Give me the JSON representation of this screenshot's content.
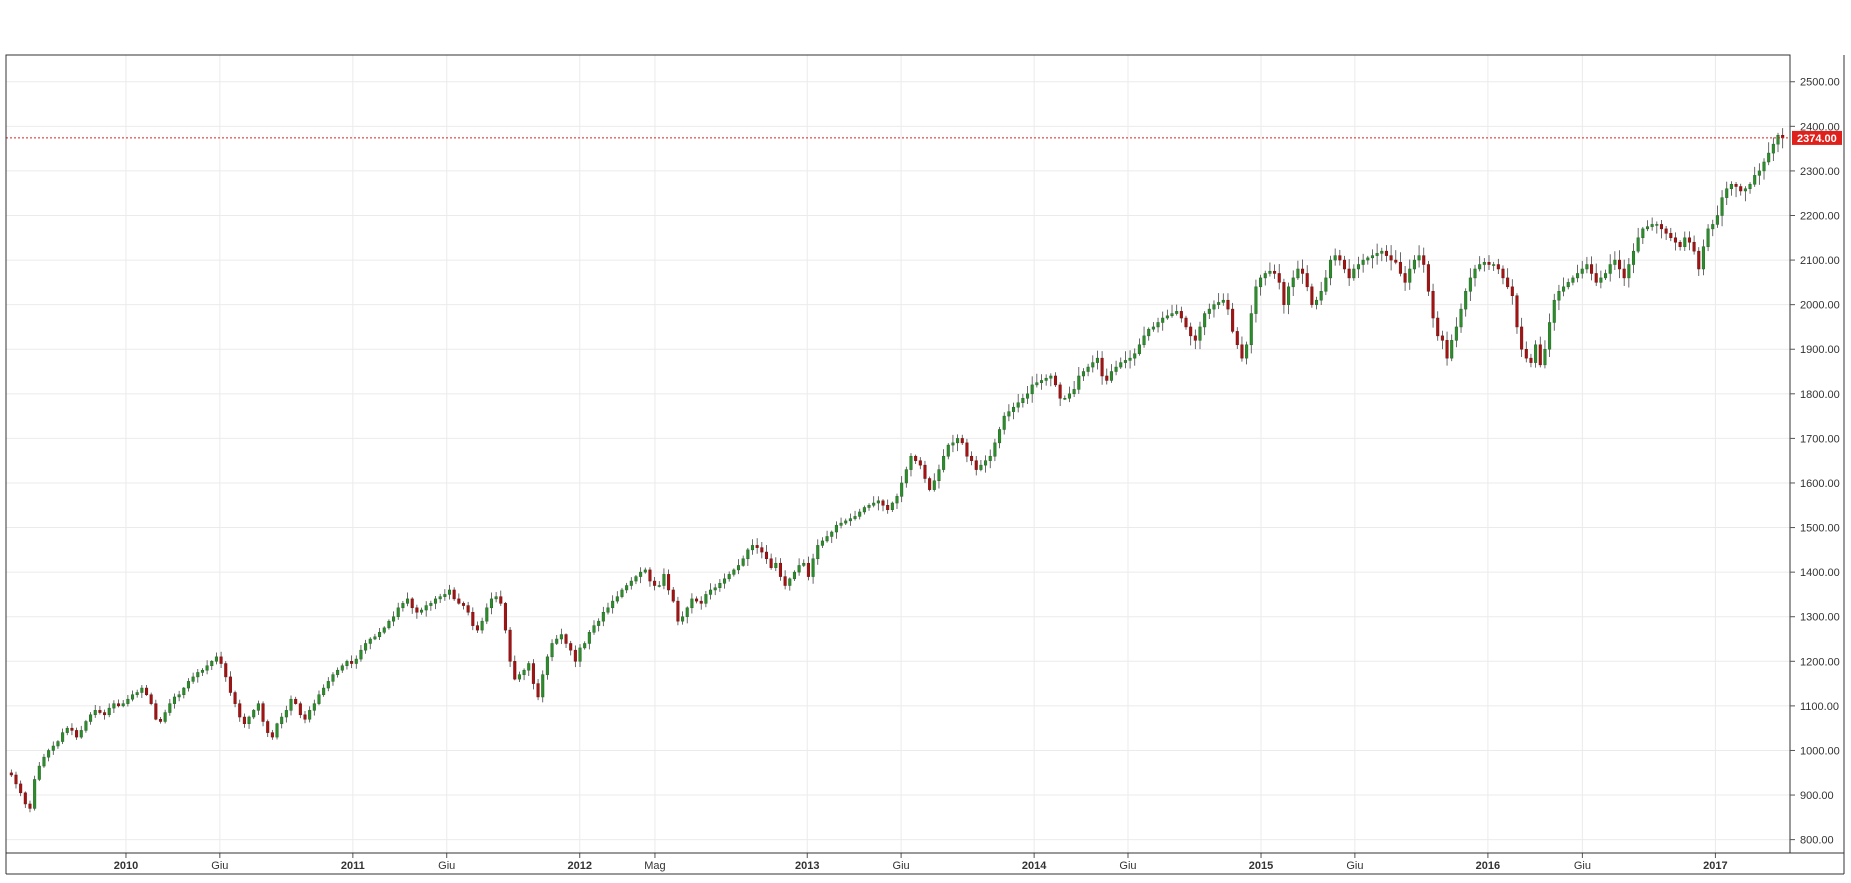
{
  "chart_data": {
    "type": "candlestick",
    "y_ticks": [
      "800.00",
      "900.00",
      "1000.00",
      "1100.00",
      "1200.00",
      "1300.00",
      "1400.00",
      "1500.00",
      "1600.00",
      "1700.00",
      "1800.00",
      "1900.00",
      "2000.00",
      "2100.00",
      "2200.00",
      "2300.00",
      "2400.00",
      "2500.00"
    ],
    "ylim": [
      770,
      2560
    ],
    "x_start": "2009-06-22",
    "x_end": "2017-05-01",
    "x_labels": [
      {
        "label": "2010",
        "date": "2010-01-01",
        "bold": true
      },
      {
        "label": "Giu",
        "date": "2010-06-01",
        "bold": false
      },
      {
        "label": "2011",
        "date": "2011-01-01",
        "bold": true
      },
      {
        "label": "Giu",
        "date": "2011-06-01",
        "bold": false
      },
      {
        "label": "2012",
        "date": "2012-01-01",
        "bold": true
      },
      {
        "label": "Mag",
        "date": "2012-05-01",
        "bold": false
      },
      {
        "label": "2013",
        "date": "2013-01-01",
        "bold": true
      },
      {
        "label": "Giu",
        "date": "2013-06-01",
        "bold": false
      },
      {
        "label": "2014",
        "date": "2014-01-01",
        "bold": true
      },
      {
        "label": "Giu",
        "date": "2014-06-01",
        "bold": false
      },
      {
        "label": "2015",
        "date": "2015-01-01",
        "bold": true
      },
      {
        "label": "Giu",
        "date": "2015-06-01",
        "bold": false
      },
      {
        "label": "2016",
        "date": "2016-01-01",
        "bold": true
      },
      {
        "label": "Giu",
        "date": "2016-06-01",
        "bold": false
      },
      {
        "label": "2017",
        "date": "2017-01-01",
        "bold": true
      }
    ],
    "last_price": 2374,
    "last_price_label": "2374.00",
    "colors": {
      "up": "#2e8b2e",
      "down": "#a11414",
      "wick": "#444444",
      "grid": "#ebebeb",
      "price_line": "#e0201b",
      "price_tag": "#e0201b"
    },
    "weekly_closes": [
      945,
      925,
      905,
      880,
      870,
      935,
      965,
      985,
      1000,
      1010,
      1020,
      1040,
      1050,
      1045,
      1030,
      1045,
      1065,
      1080,
      1090,
      1085,
      1080,
      1095,
      1105,
      1100,
      1105,
      1115,
      1125,
      1130,
      1140,
      1125,
      1105,
      1070,
      1065,
      1085,
      1105,
      1120,
      1125,
      1140,
      1155,
      1165,
      1175,
      1180,
      1190,
      1200,
      1210,
      1195,
      1165,
      1130,
      1105,
      1075,
      1060,
      1075,
      1090,
      1105,
      1065,
      1040,
      1030,
      1060,
      1075,
      1090,
      1115,
      1105,
      1080,
      1070,
      1090,
      1105,
      1125,
      1140,
      1155,
      1170,
      1180,
      1190,
      1200,
      1195,
      1205,
      1225,
      1240,
      1250,
      1255,
      1265,
      1275,
      1290,
      1300,
      1320,
      1330,
      1340,
      1320,
      1310,
      1315,
      1325,
      1330,
      1340,
      1345,
      1350,
      1360,
      1340,
      1330,
      1325,
      1310,
      1280,
      1270,
      1290,
      1320,
      1340,
      1345,
      1330,
      1270,
      1200,
      1160,
      1170,
      1180,
      1195,
      1150,
      1120,
      1170,
      1210,
      1240,
      1250,
      1260,
      1240,
      1225,
      1200,
      1230,
      1240,
      1265,
      1280,
      1290,
      1310,
      1320,
      1335,
      1345,
      1360,
      1370,
      1380,
      1390,
      1400,
      1405,
      1380,
      1370,
      1370,
      1395,
      1360,
      1335,
      1290,
      1300,
      1320,
      1340,
      1335,
      1330,
      1350,
      1360,
      1365,
      1375,
      1385,
      1395,
      1405,
      1415,
      1430,
      1450,
      1460,
      1455,
      1445,
      1430,
      1410,
      1420,
      1390,
      1370,
      1385,
      1400,
      1415,
      1420,
      1390,
      1430,
      1460,
      1470,
      1480,
      1490,
      1505,
      1510,
      1515,
      1520,
      1525,
      1535,
      1545,
      1550,
      1555,
      1560,
      1550,
      1540,
      1555,
      1570,
      1600,
      1630,
      1660,
      1650,
      1640,
      1610,
      1585,
      1605,
      1630,
      1660,
      1685,
      1690,
      1700,
      1690,
      1660,
      1650,
      1630,
      1640,
      1650,
      1660,
      1690,
      1720,
      1750,
      1760,
      1770,
      1780,
      1790,
      1800,
      1820,
      1825,
      1830,
      1835,
      1840,
      1820,
      1790,
      1790,
      1800,
      1810,
      1840,
      1850,
      1860,
      1870,
      1880,
      1840,
      1830,
      1850,
      1860,
      1870,
      1875,
      1880,
      1890,
      1910,
      1930,
      1945,
      1950,
      1960,
      1970,
      1975,
      1980,
      1985,
      1970,
      1950,
      1930,
      1920,
      1950,
      1980,
      1990,
      2000,
      2005,
      2010,
      1990,
      1940,
      1910,
      1880,
      1910,
      1980,
      2040,
      2060,
      2070,
      2075,
      2070,
      2050,
      2000,
      2040,
      2060,
      2080,
      2070,
      2040,
      2000,
      2010,
      2030,
      2060,
      2100,
      2110,
      2100,
      2080,
      2060,
      2080,
      2090,
      2100,
      2105,
      2110,
      2115,
      2120,
      2110,
      2100,
      2095,
      2070,
      2050,
      2080,
      2100,
      2110,
      2090,
      2030,
      1970,
      1930,
      1920,
      1880,
      1920,
      1950,
      1990,
      2030,
      2060,
      2080,
      2090,
      2095,
      2090,
      2090,
      2080,
      2060,
      2040,
      2020,
      1950,
      1900,
      1880,
      1870,
      1910,
      1865,
      1900,
      1960,
      2010,
      2030,
      2040,
      2050,
      2060,
      2070,
      2080,
      2090,
      2070,
      2050,
      2060,
      2070,
      2090,
      2100,
      2080,
      2060,
      2090,
      2120,
      2150,
      2170,
      2175,
      2180,
      2180,
      2170,
      2160,
      2150,
      2140,
      2130,
      2150,
      2140,
      2120,
      2080,
      2130,
      2170,
      2180,
      2200,
      2240,
      2260,
      2270,
      2265,
      2255,
      2260,
      2270,
      2290,
      2300,
      2320,
      2340,
      2360,
      2380,
      2374
    ]
  }
}
